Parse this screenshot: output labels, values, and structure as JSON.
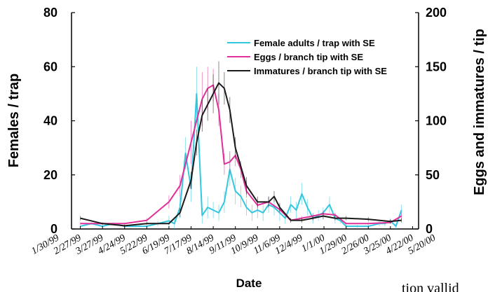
{
  "chart_data": {
    "type": "line",
    "xlabel": "Date",
    "ylabel_left": "Females / trap",
    "ylabel_right": "Eggs and immatures / tip",
    "ylim_left": [
      0,
      80
    ],
    "ylim_right": [
      0,
      200
    ],
    "y_ticks_left": [
      "0",
      "20",
      "40",
      "60",
      "80"
    ],
    "y_ticks_right": [
      "0",
      "50",
      "100",
      "150",
      "200"
    ],
    "x_tick_labels": [
      "1/30/99",
      "2/27/99",
      "3/27/99",
      "4/24/99",
      "5/22/99",
      "6/19/99",
      "7/17/99",
      "8/14/99",
      "9/11/99",
      "10/9/99",
      "11/6/99",
      "12/4/99",
      "1/1/00",
      "1/29/00",
      "2/26/00",
      "3/25/00",
      "4/22/00",
      "5/20/00"
    ],
    "legend_position": "top-right",
    "grid": false,
    "series": [
      {
        "name": "Female adults / trap with SE",
        "axis": "left",
        "color": "#33c8e0",
        "x": [
          "1999-02-27",
          "1999-03-13",
          "1999-03-27",
          "1999-04-10",
          "1999-04-24",
          "1999-05-08",
          "1999-05-22",
          "1999-06-05",
          "1999-06-19",
          "1999-06-26",
          "1999-07-03",
          "1999-07-10",
          "1999-07-17",
          "1999-07-24",
          "1999-07-31",
          "1999-08-07",
          "1999-08-14",
          "1999-08-21",
          "1999-08-28",
          "1999-09-04",
          "1999-09-11",
          "1999-09-18",
          "1999-09-25",
          "1999-10-02",
          "1999-10-09",
          "1999-10-16",
          "1999-10-23",
          "1999-10-30",
          "1999-11-06",
          "1999-11-13",
          "1999-11-20",
          "1999-11-27",
          "1999-12-04",
          "1999-12-11",
          "1999-12-18",
          "1999-12-25",
          "1999-12-31",
          "2000-01-08",
          "2000-01-15",
          "2000-01-22",
          "2000-01-29",
          "2000-02-12",
          "2000-02-26",
          "2000-03-11",
          "2000-03-18",
          "2000-03-25",
          "2000-04-01",
          "2000-04-08"
        ],
        "values": [
          1,
          2,
          1,
          2,
          1,
          1,
          1,
          2,
          3,
          2,
          8,
          28,
          15,
          50,
          5,
          8,
          7,
          6,
          10,
          22,
          14,
          12,
          8,
          6,
          7,
          6,
          9,
          8,
          6,
          4,
          9,
          7,
          13,
          8,
          4,
          5,
          6,
          9,
          4,
          3,
          1,
          1,
          1,
          2,
          2,
          3,
          1,
          7
        ],
        "se": [
          0.5,
          0.5,
          0.5,
          0.5,
          0.5,
          0.5,
          0.5,
          1,
          2,
          2,
          4,
          6,
          5,
          10,
          3,
          4,
          3,
          3,
          4,
          6,
          5,
          4,
          3,
          3,
          3,
          3,
          3,
          3,
          3,
          2,
          3,
          3,
          4,
          3,
          2,
          2,
          2,
          3,
          2,
          1,
          0.5,
          0.5,
          0.5,
          1,
          1,
          1,
          1,
          2
        ]
      },
      {
        "name": "Eggs / branch tip with SE",
        "axis": "right",
        "color": "#e0309a",
        "x": [
          "1999-02-27",
          "1999-03-27",
          "1999-04-24",
          "1999-05-22",
          "1999-06-19",
          "1999-07-03",
          "1999-07-17",
          "1999-07-31",
          "1999-08-07",
          "1999-08-14",
          "1999-08-21",
          "1999-08-28",
          "1999-09-04",
          "1999-09-11",
          "1999-09-18",
          "1999-09-25",
          "1999-10-09",
          "1999-10-23",
          "1999-11-06",
          "1999-11-20",
          "1999-12-04",
          "1999-12-18",
          "1999-12-31",
          "2000-01-15",
          "2000-01-29",
          "2000-02-26",
          "2000-03-25",
          "2000-04-08"
        ],
        "values": [
          5,
          5,
          5,
          8,
          25,
          40,
          80,
          120,
          130,
          133,
          110,
          60,
          62,
          68,
          55,
          35,
          22,
          25,
          18,
          8,
          10,
          12,
          14,
          13,
          5,
          5,
          6,
          12
        ],
        "se": [
          1,
          1,
          1,
          2,
          6,
          10,
          20,
          25,
          20,
          15,
          15,
          10,
          10,
          10,
          8,
          6,
          4,
          4,
          3,
          2,
          2,
          2,
          3,
          2,
          1,
          1,
          1,
          3
        ]
      },
      {
        "name": "Immatures / branch tip with SE",
        "axis": "right",
        "color": "#1a1a1a",
        "x": [
          "1999-02-27",
          "1999-03-27",
          "1999-04-24",
          "1999-05-22",
          "1999-06-19",
          "1999-07-03",
          "1999-07-17",
          "1999-07-24",
          "1999-07-31",
          "1999-08-07",
          "1999-08-14",
          "1999-08-21",
          "1999-08-28",
          "1999-09-04",
          "1999-09-11",
          "1999-09-25",
          "1999-10-09",
          "1999-10-23",
          "1999-10-30",
          "1999-11-06",
          "1999-11-20",
          "1999-12-04",
          "1999-12-18",
          "1999-12-31",
          "2000-01-15",
          "2000-01-29",
          "2000-02-26",
          "2000-03-25",
          "2000-04-08"
        ],
        "values": [
          10,
          5,
          3,
          5,
          5,
          15,
          45,
          80,
          105,
          115,
          125,
          135,
          130,
          110,
          75,
          40,
          25,
          25,
          30,
          20,
          8,
          8,
          10,
          12,
          10,
          10,
          9,
          7,
          8
        ],
        "se": [
          2,
          1,
          1,
          1,
          1,
          4,
          8,
          12,
          15,
          15,
          18,
          20,
          15,
          12,
          10,
          8,
          5,
          5,
          5,
          4,
          2,
          2,
          2,
          3,
          2,
          2,
          2,
          2,
          2
        ]
      }
    ]
  },
  "bottom_text": "tion   vallid"
}
